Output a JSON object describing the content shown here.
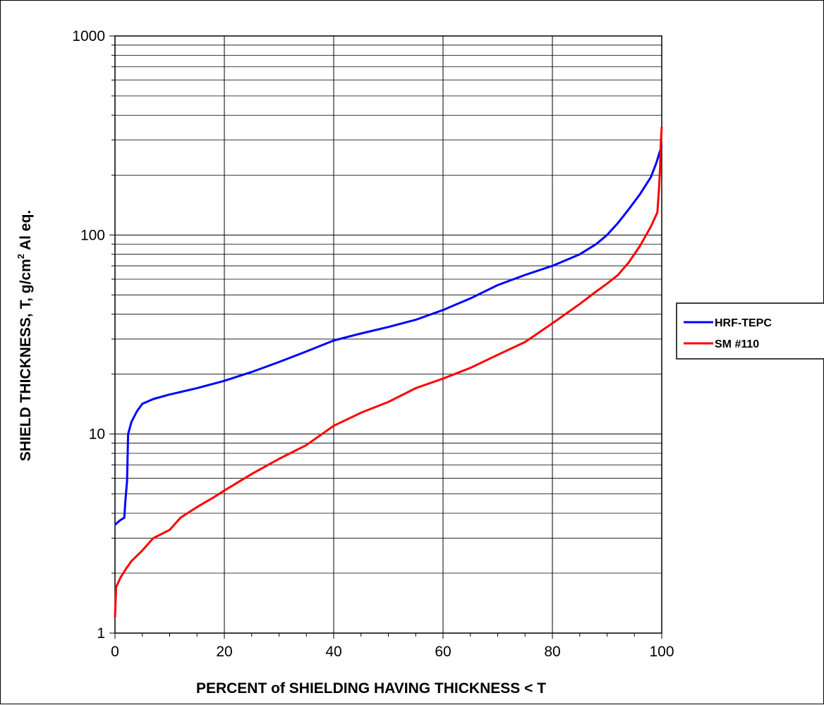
{
  "chart_data": {
    "type": "line",
    "title": "",
    "xlabel": "PERCENT of SHIELDING HAVING THICKNESS  <  T",
    "ylabel": {
      "pre": "SHIELD THICKNESS, T,  g/cm",
      "sup": "2",
      "post": " Al eq."
    },
    "x_scale": "linear",
    "y_scale": "log",
    "xlim": [
      0,
      100
    ],
    "ylim": [
      1,
      1000
    ],
    "x_ticks": [
      "0",
      "20",
      "40",
      "60",
      "80",
      "100"
    ],
    "y_ticks": [
      "1",
      "10",
      "100",
      "1000"
    ],
    "grid": true,
    "legend_position": "right",
    "series": [
      {
        "name": "HRF-TEPC",
        "color": "#0000ff",
        "points": [
          [
            0,
            3.5
          ],
          [
            0.5,
            3.6
          ],
          [
            1,
            3.7
          ],
          [
            1.7,
            3.8
          ],
          [
            1.9,
            4.6
          ],
          [
            2.2,
            5.8
          ],
          [
            2.4,
            10
          ],
          [
            3,
            11.5
          ],
          [
            4,
            13
          ],
          [
            5,
            14.2
          ],
          [
            7,
            15
          ],
          [
            10,
            15.8
          ],
          [
            15,
            17
          ],
          [
            20,
            18.5
          ],
          [
            25,
            20.5
          ],
          [
            30,
            23
          ],
          [
            35,
            26
          ],
          [
            40,
            29.5
          ],
          [
            45,
            32
          ],
          [
            50,
            34.5
          ],
          [
            55,
            37.5
          ],
          [
            60,
            42
          ],
          [
            65,
            48
          ],
          [
            70,
            56
          ],
          [
            75,
            63
          ],
          [
            80,
            70
          ],
          [
            85,
            80
          ],
          [
            88,
            90
          ],
          [
            90,
            100
          ],
          [
            92,
            115
          ],
          [
            94,
            135
          ],
          [
            96,
            160
          ],
          [
            98,
            195
          ],
          [
            99,
            230
          ],
          [
            99.6,
            260
          ],
          [
            100,
            280
          ]
        ]
      },
      {
        "name": "SM #110",
        "color": "#ff0000",
        "points": [
          [
            0,
            1.2
          ],
          [
            0.2,
            1.7
          ],
          [
            1,
            1.9
          ],
          [
            2,
            2.1
          ],
          [
            3,
            2.3
          ],
          [
            5,
            2.6
          ],
          [
            7,
            3.0
          ],
          [
            10,
            3.3
          ],
          [
            12,
            3.8
          ],
          [
            15,
            4.3
          ],
          [
            18,
            4.8
          ],
          [
            20,
            5.2
          ],
          [
            25,
            6.3
          ],
          [
            30,
            7.5
          ],
          [
            35,
            8.8
          ],
          [
            40,
            11
          ],
          [
            45,
            12.8
          ],
          [
            50,
            14.5
          ],
          [
            55,
            17
          ],
          [
            60,
            19
          ],
          [
            65,
            21.5
          ],
          [
            70,
            25
          ],
          [
            75,
            29
          ],
          [
            80,
            36
          ],
          [
            85,
            45
          ],
          [
            88,
            52
          ],
          [
            90,
            57
          ],
          [
            92,
            63
          ],
          [
            94,
            73
          ],
          [
            96,
            88
          ],
          [
            98,
            110
          ],
          [
            99.2,
            130
          ],
          [
            99.5,
            170
          ],
          [
            99.7,
            220
          ],
          [
            99.8,
            280
          ],
          [
            100,
            350
          ]
        ]
      }
    ]
  }
}
